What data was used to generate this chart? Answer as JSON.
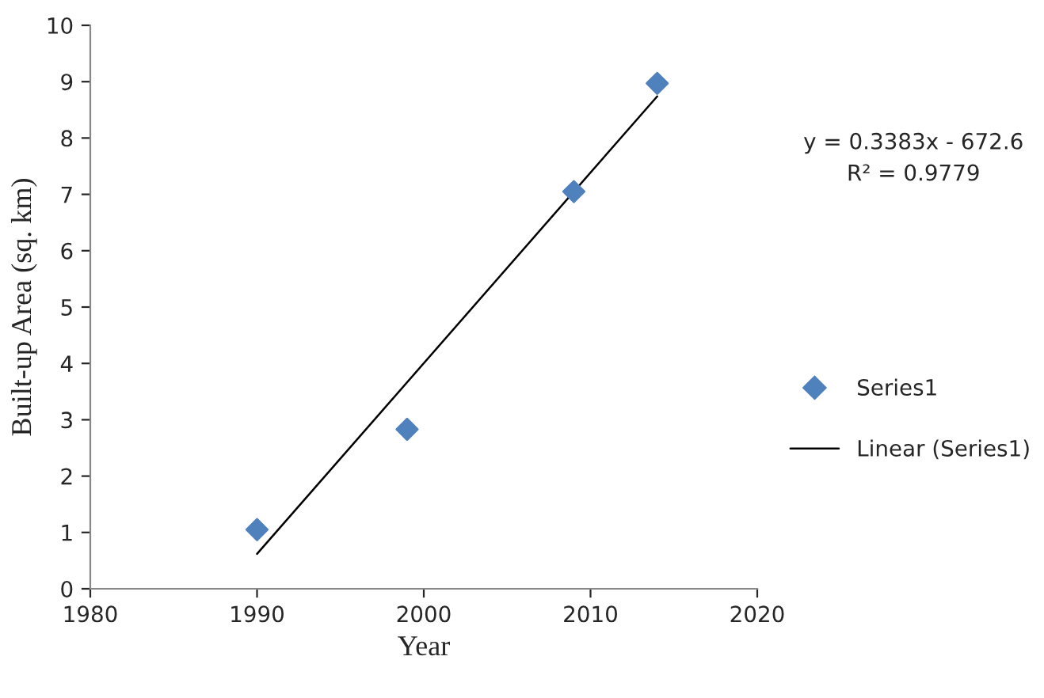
{
  "chart_data": {
    "type": "scatter",
    "xlabel": "Year",
    "ylabel": "Built-up Area (sq. km)",
    "x": [
      1990,
      1999,
      2009,
      2014
    ],
    "series": [
      {
        "name": "Series1",
        "color": "#4f81bd",
        "marker": "diamond",
        "values": [
          1.05,
          2.83,
          7.05,
          8.97
        ]
      },
      {
        "name": "Linear (Series1)",
        "type": "line",
        "color": "#000000",
        "marker": "none",
        "line_style": "solid",
        "x": [
          1990,
          2014
        ],
        "values": [
          0.62,
          8.74
        ]
      }
    ],
    "annotations": [
      "y = 0.3383x - 672.6",
      "R² = 0.9779"
    ],
    "xlim": [
      1980,
      2020
    ],
    "xticks": [
      1980,
      1990,
      2000,
      2010,
      2020
    ],
    "ylim": [
      0,
      10
    ],
    "yticks": [
      0,
      1,
      2,
      3,
      4,
      5,
      6,
      7,
      8,
      9,
      10
    ],
    "grid": false,
    "legend": "right"
  }
}
